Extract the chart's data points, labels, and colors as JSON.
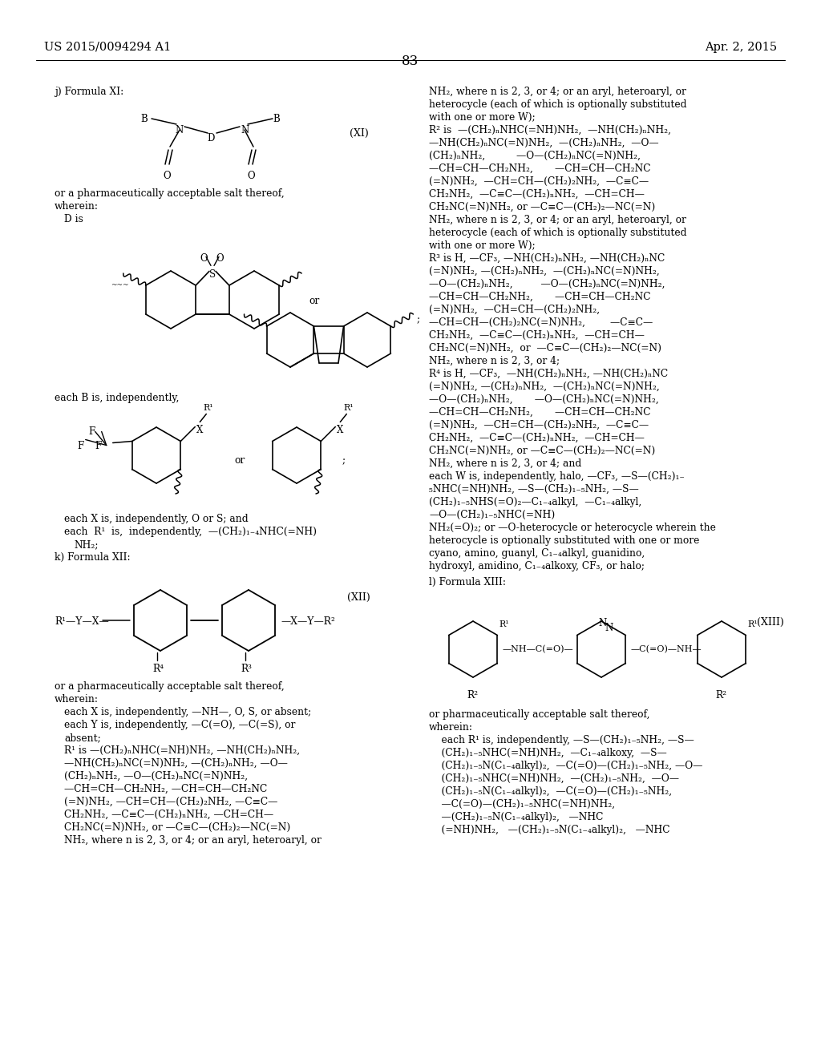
{
  "bg_color": "#ffffff",
  "header_left": "US 2015/0094294 A1",
  "header_right": "Apr. 2, 2015",
  "page_number": "83",
  "font_size_header": 10.5,
  "font_size_body": 8.8,
  "font_size_tag": 9.0
}
